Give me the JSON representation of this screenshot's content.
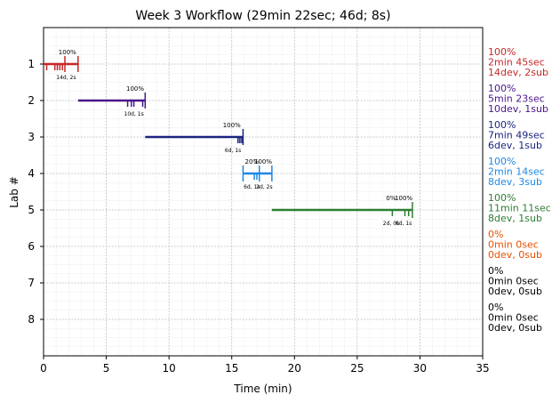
{
  "chart_data": {
    "type": "timeline",
    "title": "Week 3 Workflow (29min 22sec; 46d; 8s)",
    "xlabel": "Time (min)",
    "ylabel": "Lab #",
    "xlim": [
      0,
      35
    ],
    "ylim": [
      9,
      0
    ],
    "x_ticks": [
      0,
      5,
      10,
      15,
      20,
      25,
      30,
      35
    ],
    "y_ticks": [
      1,
      2,
      3,
      4,
      5,
      6,
      7,
      8
    ],
    "grid": true,
    "labs": [
      {
        "lab": 1,
        "color": "#c62828",
        "bar": [
          0,
          2.75
        ],
        "dev_ticks": [
          0.25,
          0.9,
          1.1,
          1.3,
          1.5
        ],
        "sub_ticks": [
          1.7,
          2.75
        ],
        "pct_labels": [
          {
            "x": 1.9,
            "text": "100%"
          }
        ],
        "count_labels": [
          {
            "x": 1.8,
            "text": "14d, 2s"
          }
        ],
        "summary": [
          "100%",
          "2min 45sec",
          "14dev, 2sub"
        ]
      },
      {
        "lab": 2,
        "color": "#4a148c",
        "bar": [
          2.75,
          8.1
        ],
        "dev_ticks": [
          6.7,
          7.0,
          7.2,
          7.9
        ],
        "sub_ticks": [
          8.1
        ],
        "pct_labels": [
          {
            "x": 7.3,
            "text": "100%"
          }
        ],
        "count_labels": [
          {
            "x": 7.2,
            "text": "10d, 1s"
          }
        ],
        "summary": [
          "100%",
          "5min 23sec",
          "10dev, 1sub"
        ]
      },
      {
        "lab": 3,
        "color": "#1a237e",
        "bar": [
          8.1,
          15.9
        ],
        "dev_ticks": [
          15.5,
          15.65,
          15.8
        ],
        "sub_ticks": [
          15.9
        ],
        "pct_labels": [
          {
            "x": 15.0,
            "text": "100%"
          }
        ],
        "count_labels": [
          {
            "x": 15.1,
            "text": "6d, 1s"
          }
        ],
        "summary": [
          "100%",
          "7min 49sec",
          "6dev, 1sub"
        ]
      },
      {
        "lab": 4,
        "color": "#1e88e5",
        "bar": [
          15.9,
          18.2
        ],
        "dev_ticks": [
          16.8,
          17.0
        ],
        "sub_ticks": [
          15.9,
          17.2,
          18.2
        ],
        "pct_labels": [
          {
            "x": 16.6,
            "text": "20%"
          },
          {
            "x": 17.5,
            "text": "100%"
          }
        ],
        "count_labels": [
          {
            "x": 16.6,
            "text": "6d, 1s"
          },
          {
            "x": 17.6,
            "text": "2d, 2s"
          }
        ],
        "summary": [
          "100%",
          "2min 14sec",
          "8dev, 3sub"
        ]
      },
      {
        "lab": 5,
        "color": "#2e7d32",
        "bar": [
          18.2,
          29.4
        ],
        "dev_ticks": [
          27.8,
          28.8,
          29.1
        ],
        "sub_ticks": [
          29.4
        ],
        "pct_labels": [
          {
            "x": 27.7,
            "text": "0%"
          },
          {
            "x": 28.7,
            "text": "100%"
          }
        ],
        "count_labels": [
          {
            "x": 27.7,
            "text": "2d, 0s"
          },
          {
            "x": 28.7,
            "text": "6d, 1s"
          }
        ],
        "summary": [
          "100%",
          "11min 11sec",
          "8dev, 1sub"
        ]
      },
      {
        "lab": 6,
        "color": "#e65100",
        "bar": null,
        "dev_ticks": [],
        "sub_ticks": [],
        "pct_labels": [],
        "count_labels": [],
        "summary": [
          "0%",
          "0min 0sec",
          "0dev, 0sub"
        ]
      },
      {
        "lab": 7,
        "color": "#000000",
        "bar": null,
        "dev_ticks": [],
        "sub_ticks": [],
        "pct_labels": [],
        "count_labels": [],
        "summary": [
          "0%",
          "0min 0sec",
          "0dev, 0sub"
        ]
      },
      {
        "lab": 8,
        "color": "#000000",
        "bar": null,
        "dev_ticks": [],
        "sub_ticks": [],
        "pct_labels": [],
        "count_labels": [],
        "summary": [
          "0%",
          "0min 0sec",
          "0dev, 0sub"
        ]
      }
    ]
  }
}
